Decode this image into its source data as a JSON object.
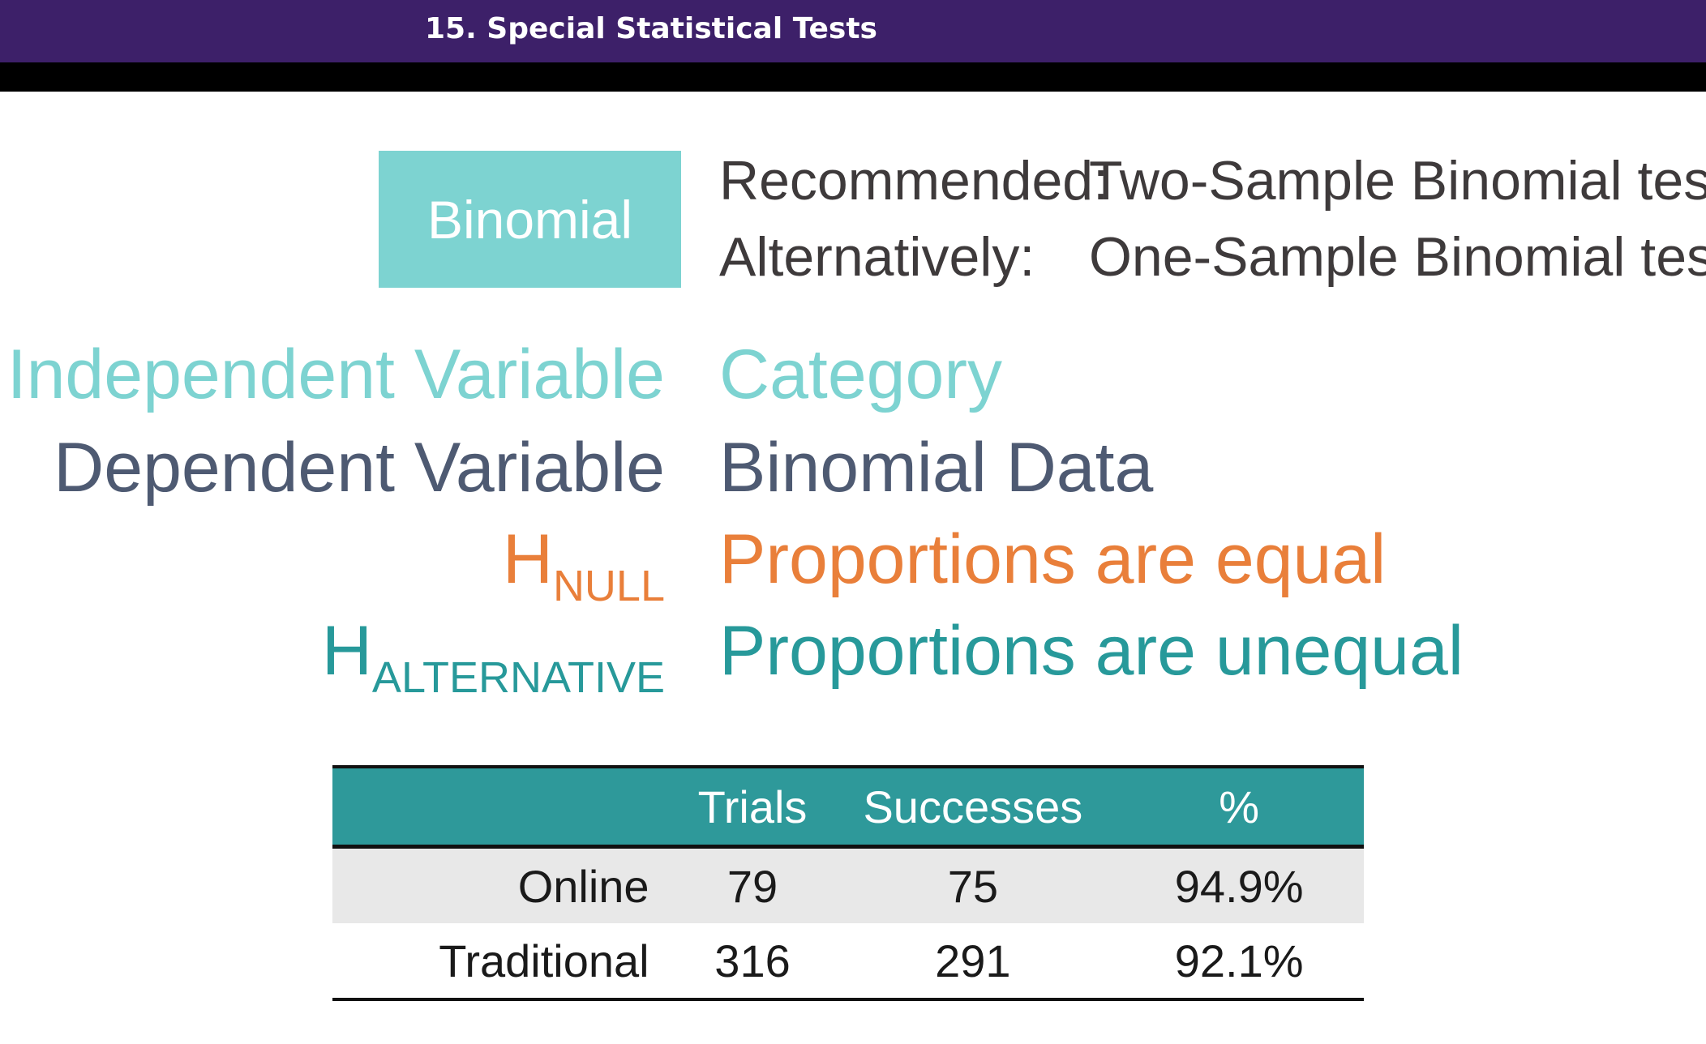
{
  "header": {
    "title": "15. Special Statistical Tests"
  },
  "slide": {
    "badge": "Binomial",
    "recommended_label": "Recommended:",
    "recommended_value": "Two-Sample Binomial test",
    "alternatively_label": "Alternatively:",
    "alternatively_value": "One-Sample Binomial test",
    "independent_label": "Independent Variable",
    "independent_value": "Category",
    "dependent_label": "Dependent Variable",
    "dependent_value": "Binomial Data",
    "hnull_h": "H",
    "hnull_sub": "NULL",
    "hnull_value": "Proportions are equal",
    "halt_h": "H",
    "halt_sub": "ALTERNATIVE",
    "halt_value": "Proportions are unequal",
    "colors": {
      "header_bg": "#3d2069",
      "teal_light": "#7dd3d1",
      "slate": "#4e5a72",
      "orange": "#e97f3a",
      "teal_dark": "#27999a"
    }
  },
  "table": {
    "headers": [
      "",
      "Trials",
      "Successes",
      "%"
    ],
    "rows": [
      [
        "Online",
        "79",
        "75",
        "94.9%"
      ],
      [
        "Traditional",
        "316",
        "291",
        "92.1%"
      ]
    ]
  }
}
